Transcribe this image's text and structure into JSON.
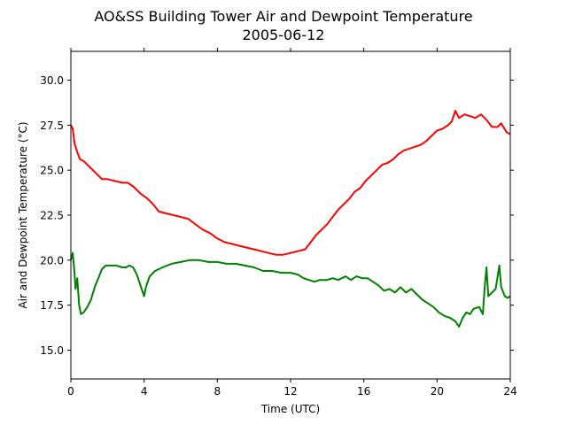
{
  "chart_data": {
    "type": "line",
    "title": "AO&SS Building Tower Air and Dewpoint Temperature",
    "subtitle": "2005-06-12",
    "xlabel": "Time (UTC)",
    "ylabel": "Air and Dewpoint Temperature (°C)",
    "xlim": [
      0,
      24
    ],
    "ylim": [
      13.4,
      31.6
    ],
    "xticks": [
      0,
      4,
      8,
      12,
      16,
      20,
      24
    ],
    "xtick_labels": [
      "0",
      "4",
      "8",
      "12",
      "16",
      "20",
      "24"
    ],
    "yticks": [
      15.0,
      17.5,
      20.0,
      22.5,
      25.0,
      27.5,
      30.0
    ],
    "ytick_labels": [
      "15.0",
      "17.5",
      "20.0",
      "22.5",
      "25.0",
      "27.5",
      "30.0"
    ],
    "grid": false,
    "legend": "none",
    "series": [
      {
        "color": "#ff0000",
        "points": [
          [
            0.0,
            27.5
          ],
          [
            0.1,
            27.3
          ],
          [
            0.2,
            26.5
          ],
          [
            0.35,
            26.0
          ],
          [
            0.5,
            25.6
          ],
          [
            0.7,
            25.5
          ],
          [
            1.0,
            25.2
          ],
          [
            1.4,
            24.8
          ],
          [
            1.7,
            24.5
          ],
          [
            2.0,
            24.5
          ],
          [
            2.4,
            24.4
          ],
          [
            2.8,
            24.3
          ],
          [
            3.1,
            24.3
          ],
          [
            3.4,
            24.1
          ],
          [
            3.8,
            23.7
          ],
          [
            4.2,
            23.4
          ],
          [
            4.5,
            23.1
          ],
          [
            4.8,
            22.7
          ],
          [
            5.2,
            22.6
          ],
          [
            5.6,
            22.5
          ],
          [
            6.0,
            22.4
          ],
          [
            6.4,
            22.3
          ],
          [
            6.8,
            22.0
          ],
          [
            7.2,
            21.7
          ],
          [
            7.6,
            21.5
          ],
          [
            8.0,
            21.2
          ],
          [
            8.4,
            21.0
          ],
          [
            8.8,
            20.9
          ],
          [
            9.2,
            20.8
          ],
          [
            9.6,
            20.7
          ],
          [
            10.0,
            20.6
          ],
          [
            10.4,
            20.5
          ],
          [
            10.8,
            20.4
          ],
          [
            11.2,
            20.3
          ],
          [
            11.6,
            20.3
          ],
          [
            12.0,
            20.4
          ],
          [
            12.4,
            20.5
          ],
          [
            12.8,
            20.6
          ],
          [
            13.1,
            21.0
          ],
          [
            13.4,
            21.4
          ],
          [
            13.7,
            21.7
          ],
          [
            14.0,
            22.0
          ],
          [
            14.3,
            22.4
          ],
          [
            14.6,
            22.8
          ],
          [
            14.9,
            23.1
          ],
          [
            15.2,
            23.4
          ],
          [
            15.5,
            23.8
          ],
          [
            15.8,
            24.0
          ],
          [
            16.1,
            24.4
          ],
          [
            16.4,
            24.7
          ],
          [
            16.7,
            25.0
          ],
          [
            17.0,
            25.3
          ],
          [
            17.3,
            25.4
          ],
          [
            17.6,
            25.6
          ],
          [
            17.9,
            25.9
          ],
          [
            18.2,
            26.1
          ],
          [
            18.5,
            26.2
          ],
          [
            18.8,
            26.3
          ],
          [
            19.1,
            26.4
          ],
          [
            19.4,
            26.6
          ],
          [
            19.7,
            26.9
          ],
          [
            20.0,
            27.2
          ],
          [
            20.3,
            27.3
          ],
          [
            20.6,
            27.5
          ],
          [
            20.8,
            27.7
          ],
          [
            21.0,
            28.3
          ],
          [
            21.2,
            27.9
          ],
          [
            21.5,
            28.1
          ],
          [
            21.8,
            28.0
          ],
          [
            22.1,
            27.9
          ],
          [
            22.4,
            28.1
          ],
          [
            22.7,
            27.8
          ],
          [
            23.0,
            27.4
          ],
          [
            23.3,
            27.4
          ],
          [
            23.5,
            27.6
          ],
          [
            23.8,
            27.1
          ],
          [
            24.0,
            27.0
          ]
        ]
      },
      {
        "color": "#008000",
        "points": [
          [
            0.0,
            20.0
          ],
          [
            0.1,
            20.4
          ],
          [
            0.2,
            19.3
          ],
          [
            0.25,
            18.4
          ],
          [
            0.35,
            19.0
          ],
          [
            0.45,
            17.5
          ],
          [
            0.55,
            17.0
          ],
          [
            0.7,
            17.1
          ],
          [
            0.9,
            17.4
          ],
          [
            1.1,
            17.8
          ],
          [
            1.3,
            18.5
          ],
          [
            1.5,
            19.0
          ],
          [
            1.7,
            19.5
          ],
          [
            1.9,
            19.7
          ],
          [
            2.2,
            19.7
          ],
          [
            2.5,
            19.7
          ],
          [
            2.8,
            19.6
          ],
          [
            3.0,
            19.6
          ],
          [
            3.2,
            19.7
          ],
          [
            3.4,
            19.6
          ],
          [
            3.6,
            19.2
          ],
          [
            3.8,
            18.6
          ],
          [
            4.0,
            18.0
          ],
          [
            4.1,
            18.5
          ],
          [
            4.3,
            19.1
          ],
          [
            4.6,
            19.4
          ],
          [
            5.0,
            19.6
          ],
          [
            5.5,
            19.8
          ],
          [
            6.0,
            19.9
          ],
          [
            6.5,
            20.0
          ],
          [
            7.0,
            20.0
          ],
          [
            7.5,
            19.9
          ],
          [
            8.0,
            19.9
          ],
          [
            8.5,
            19.8
          ],
          [
            9.0,
            19.8
          ],
          [
            9.5,
            19.7
          ],
          [
            10.0,
            19.6
          ],
          [
            10.5,
            19.4
          ],
          [
            11.0,
            19.4
          ],
          [
            11.5,
            19.3
          ],
          [
            12.0,
            19.3
          ],
          [
            12.4,
            19.2
          ],
          [
            12.7,
            19.0
          ],
          [
            13.0,
            18.9
          ],
          [
            13.3,
            18.8
          ],
          [
            13.6,
            18.9
          ],
          [
            14.0,
            18.9
          ],
          [
            14.3,
            19.0
          ],
          [
            14.6,
            18.9
          ],
          [
            15.0,
            19.1
          ],
          [
            15.3,
            18.9
          ],
          [
            15.6,
            19.1
          ],
          [
            15.9,
            19.0
          ],
          [
            16.2,
            19.0
          ],
          [
            16.5,
            18.8
          ],
          [
            16.8,
            18.6
          ],
          [
            17.1,
            18.3
          ],
          [
            17.4,
            18.4
          ],
          [
            17.7,
            18.2
          ],
          [
            18.0,
            18.5
          ],
          [
            18.3,
            18.2
          ],
          [
            18.6,
            18.4
          ],
          [
            18.9,
            18.1
          ],
          [
            19.2,
            17.8
          ],
          [
            19.5,
            17.6
          ],
          [
            19.8,
            17.4
          ],
          [
            20.1,
            17.1
          ],
          [
            20.4,
            16.9
          ],
          [
            20.7,
            16.8
          ],
          [
            21.0,
            16.6
          ],
          [
            21.2,
            16.3
          ],
          [
            21.4,
            16.8
          ],
          [
            21.6,
            17.1
          ],
          [
            21.8,
            17.0
          ],
          [
            22.0,
            17.3
          ],
          [
            22.3,
            17.4
          ],
          [
            22.5,
            17.0
          ],
          [
            22.6,
            18.5
          ],
          [
            22.7,
            19.6
          ],
          [
            22.8,
            18.0
          ],
          [
            23.0,
            18.2
          ],
          [
            23.2,
            18.4
          ],
          [
            23.4,
            19.7
          ],
          [
            23.5,
            18.5
          ],
          [
            23.7,
            18.0
          ],
          [
            23.85,
            17.9
          ],
          [
            24.0,
            18.0
          ]
        ]
      }
    ]
  }
}
